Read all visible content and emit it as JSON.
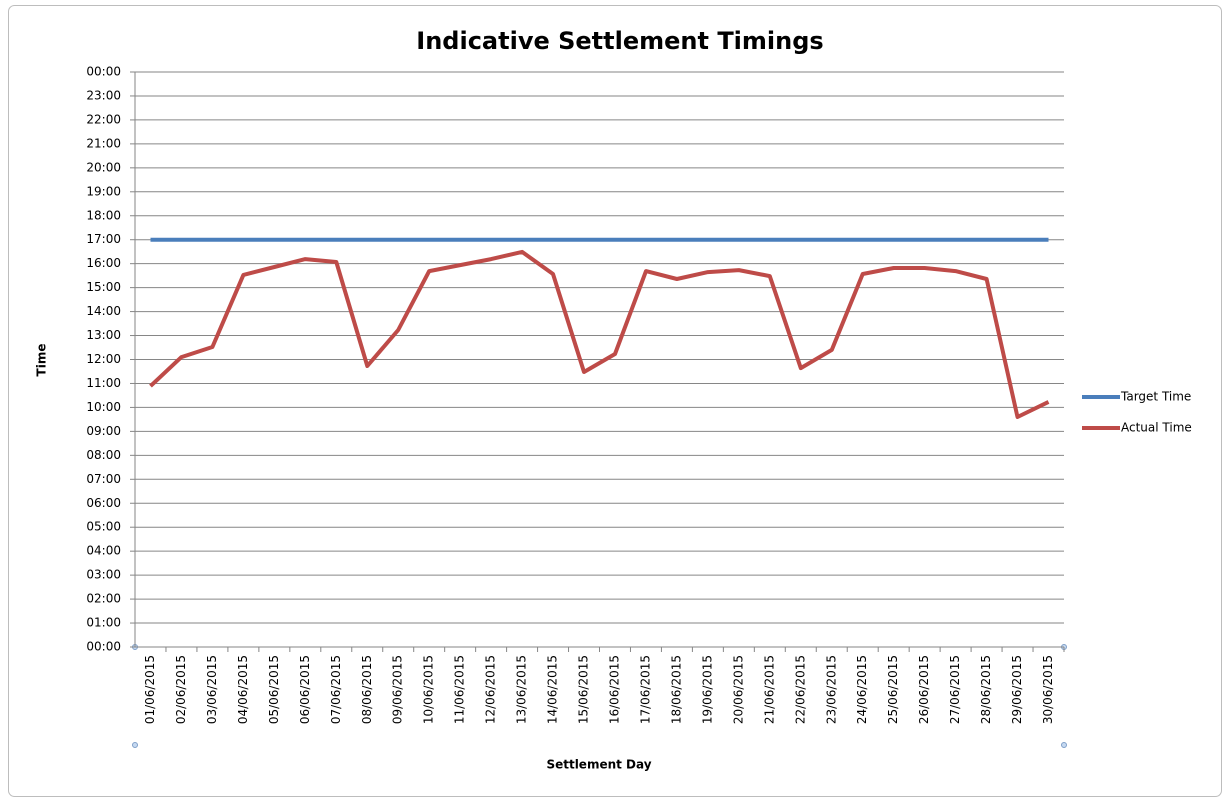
{
  "chart_data": {
    "type": "line",
    "title": "Indicative Settlement Timings",
    "x_label": "Settlement Day",
    "y_label": "Time",
    "categories": [
      "01/06/2015",
      "02/06/2015",
      "03/06/2015",
      "04/06/2015",
      "05/06/2015",
      "06/06/2015",
      "07/06/2015",
      "08/06/2015",
      "09/06/2015",
      "10/06/2015",
      "11/06/2015",
      "12/06/2015",
      "13/06/2015",
      "14/06/2015",
      "15/06/2015",
      "16/06/2015",
      "17/06/2015",
      "18/06/2015",
      "19/06/2015",
      "20/06/2015",
      "21/06/2015",
      "22/06/2015",
      "23/06/2015",
      "24/06/2015",
      "25/06/2015",
      "26/06/2015",
      "27/06/2015",
      "28/06/2015",
      "29/06/2015",
      "30/06/2015"
    ],
    "series": [
      {
        "name": "Target Time",
        "color": "#4a7ebb",
        "values": [
          17,
          17,
          17,
          17,
          17,
          17,
          17,
          17,
          17,
          17,
          17,
          17,
          17,
          17,
          17,
          17,
          17,
          17,
          17,
          17,
          17,
          17,
          17,
          17,
          17,
          17,
          17,
          17,
          17,
          17
        ]
      },
      {
        "name": "Actual Time",
        "color": "#be4b48",
        "values": [
          10.89,
          12.1,
          12.52,
          15.53,
          15.86,
          16.19,
          16.07,
          11.73,
          13.23,
          15.69,
          15.94,
          16.19,
          16.49,
          15.57,
          11.48,
          12.23,
          15.69,
          15.36,
          15.65,
          15.73,
          15.48,
          11.64,
          12.4,
          15.57,
          15.82,
          15.82,
          15.69,
          15.36,
          9.6,
          10.23
        ]
      }
    ],
    "ylim": [
      0,
      24
    ],
    "yticks": [
      {
        "value": 0,
        "label": "00:00"
      },
      {
        "value": 1,
        "label": "01:00"
      },
      {
        "value": 2,
        "label": "02:00"
      },
      {
        "value": 3,
        "label": "03:00"
      },
      {
        "value": 4,
        "label": "04:00"
      },
      {
        "value": 5,
        "label": "05:00"
      },
      {
        "value": 6,
        "label": "06:00"
      },
      {
        "value": 7,
        "label": "07:00"
      },
      {
        "value": 8,
        "label": "08:00"
      },
      {
        "value": 9,
        "label": "09:00"
      },
      {
        "value": 10,
        "label": "10:00"
      },
      {
        "value": 11,
        "label": "11:00"
      },
      {
        "value": 12,
        "label": "12:00"
      },
      {
        "value": 13,
        "label": "13:00"
      },
      {
        "value": 14,
        "label": "14:00"
      },
      {
        "value": 15,
        "label": "15:00"
      },
      {
        "value": 16,
        "label": "16:00"
      },
      {
        "value": 17,
        "label": "17:00"
      },
      {
        "value": 18,
        "label": "18:00"
      },
      {
        "value": 19,
        "label": "19:00"
      },
      {
        "value": 20,
        "label": "20:00"
      },
      {
        "value": 21,
        "label": "21:00"
      },
      {
        "value": 22,
        "label": "22:00"
      },
      {
        "value": 23,
        "label": "23:00"
      },
      {
        "value": 24,
        "label": "00:00"
      }
    ],
    "grid": true,
    "legend": "right"
  }
}
